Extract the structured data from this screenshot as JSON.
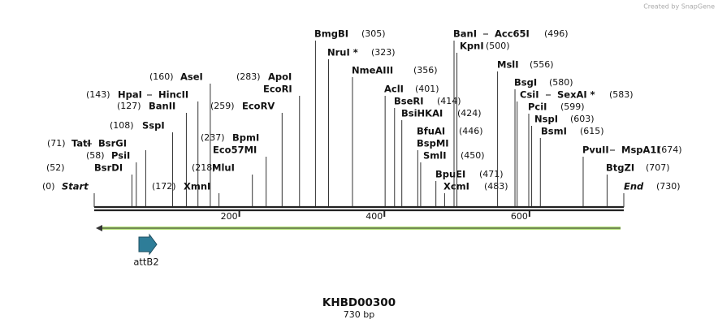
{
  "header": {
    "credit": "Created by SnapGene"
  },
  "map": {
    "name": "KHBD00300",
    "length_label": "730 bp",
    "ticks": [
      200,
      400,
      600
    ],
    "start": {
      "label": "Start",
      "position": {
        "value": 0,
        "label": "(0)"
      }
    },
    "end": {
      "label": "End",
      "position": {
        "value": 730,
        "label": "(730)"
      }
    },
    "sites": [
      {
        "names": [
          "BsrDI"
        ],
        "position": {
          "value": 52,
          "label": "(52)"
        }
      },
      {
        "names": [
          "PsiI"
        ],
        "position": {
          "value": 58,
          "label": "(58)"
        }
      },
      {
        "names": [
          "TatI",
          "BsrGI"
        ],
        "position": {
          "value": 71,
          "label": "(71)"
        }
      },
      {
        "names": [
          "SspI"
        ],
        "position": {
          "value": 108,
          "label": "(108)"
        }
      },
      {
        "names": [
          "BanII"
        ],
        "position": {
          "value": 127,
          "label": "(127)"
        }
      },
      {
        "names": [
          "HpaI",
          "HincII"
        ],
        "position": {
          "value": 143,
          "label": "(143)"
        }
      },
      {
        "names": [
          "AseI"
        ],
        "position": {
          "value": 160,
          "label": "(160)"
        }
      },
      {
        "names": [
          "XmnI"
        ],
        "position": {
          "value": 172,
          "label": "(172)"
        }
      },
      {
        "names": [
          "MluI"
        ],
        "position": {
          "value": 218,
          "label": "(218)"
        }
      },
      {
        "names": [
          "BpmI",
          "Eco57MI"
        ],
        "position": {
          "value": 237,
          "label": "(237)"
        }
      },
      {
        "names": [
          "EcoRV"
        ],
        "position": {
          "value": 259,
          "label": "(259)"
        }
      },
      {
        "names": [
          "ApoI",
          "EcoRI"
        ],
        "position": {
          "value": 283,
          "label": "(283)"
        }
      },
      {
        "names": [
          "BmgBI"
        ],
        "position": {
          "value": 305,
          "label": "(305)"
        }
      },
      {
        "names": [
          "NruI *"
        ],
        "position": {
          "value": 323,
          "label": "(323)"
        }
      },
      {
        "names": [
          "NmeAIII"
        ],
        "position": {
          "value": 356,
          "label": "(356)"
        }
      },
      {
        "names": [
          "AclI"
        ],
        "position": {
          "value": 401,
          "label": "(401)"
        }
      },
      {
        "names": [
          "BseRI"
        ],
        "position": {
          "value": 414,
          "label": "(414)"
        }
      },
      {
        "names": [
          "BsiHKAI"
        ],
        "position": {
          "value": 424,
          "label": "(424)"
        }
      },
      {
        "names": [
          "BfuAI",
          "BspMI"
        ],
        "position": {
          "value": 446,
          "label": "(446)"
        }
      },
      {
        "names": [
          "SmlI"
        ],
        "position": {
          "value": 450,
          "label": "(450)"
        }
      },
      {
        "names": [
          "BpuEI"
        ],
        "position": {
          "value": 471,
          "label": "(471)"
        }
      },
      {
        "names": [
          "XcmI"
        ],
        "position": {
          "value": 483,
          "label": "(483)"
        }
      },
      {
        "names": [
          "BanI",
          "Acc65I"
        ],
        "position": {
          "value": 496,
          "label": "(496)"
        }
      },
      {
        "names": [
          "KpnI"
        ],
        "position": {
          "value": 500,
          "label": "(500)"
        }
      },
      {
        "names": [
          "MslI"
        ],
        "position": {
          "value": 556,
          "label": "(556)"
        }
      },
      {
        "names": [
          "BsgI"
        ],
        "position": {
          "value": 580,
          "label": "(580)"
        }
      },
      {
        "names": [
          "CsiI",
          "SexAI *"
        ],
        "position": {
          "value": 583,
          "label": "(583)"
        }
      },
      {
        "names": [
          "PciI"
        ],
        "position": {
          "value": 599,
          "label": "(599)"
        }
      },
      {
        "names": [
          "NspI"
        ],
        "position": {
          "value": 603,
          "label": "(603)"
        }
      },
      {
        "names": [
          "BsmI"
        ],
        "position": {
          "value": 615,
          "label": "(615)"
        }
      },
      {
        "names": [
          "PvuII",
          "MspA1I"
        ],
        "position": {
          "value": 674,
          "label": "(674)"
        }
      },
      {
        "names": [
          "BtgZI"
        ],
        "position": {
          "value": 707,
          "label": "(707)"
        }
      }
    ],
    "features": [
      {
        "name": "attB2"
      }
    ]
  }
}
